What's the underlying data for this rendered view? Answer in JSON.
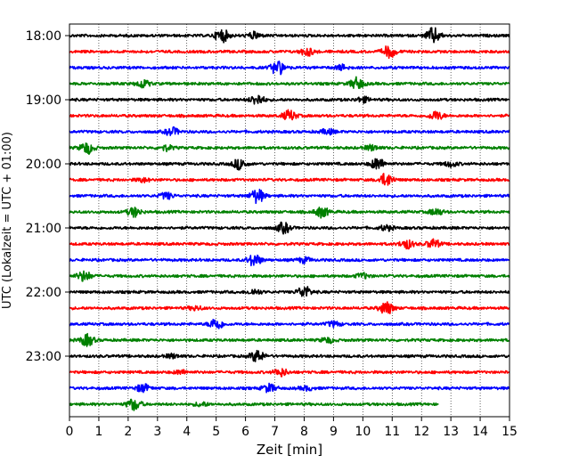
{
  "chart_data": {
    "type": "line",
    "description": "Helicorder seismogram: one trace per 15-minute interval, 18:00 to 23:45 UTC",
    "xlabel": "Zeit  [min]",
    "ylabel": "UTC (Lokalzeit = UTC + 01:00)",
    "xlim": [
      0,
      15
    ],
    "x_ticks": [
      "0",
      "1",
      "2",
      "3",
      "4",
      "5",
      "6",
      "7",
      "8",
      "9",
      "10",
      "11",
      "12",
      "13",
      "14",
      "15"
    ],
    "y_ticks": [
      "18:00",
      "19:00",
      "20:00",
      "21:00",
      "22:00",
      "23:00"
    ],
    "grid_x": true,
    "trace_colors": [
      "#000000",
      "#ff0000",
      "#0000ff",
      "#008000"
    ],
    "traces": [
      {
        "start": "18:00",
        "color": "#000000",
        "end_min": 15,
        "bursts": [
          [
            5.2,
            1.0
          ],
          [
            12.4,
            1.2
          ],
          [
            6.3,
            0.5
          ]
        ]
      },
      {
        "start": "18:15",
        "color": "#ff0000",
        "end_min": 15,
        "bursts": [
          [
            8.1,
            0.6
          ],
          [
            10.9,
            0.9
          ]
        ]
      },
      {
        "start": "18:30",
        "color": "#0000ff",
        "end_min": 15,
        "bursts": [
          [
            7.1,
            1.1
          ],
          [
            9.3,
            0.4
          ]
        ]
      },
      {
        "start": "18:45",
        "color": "#008000",
        "end_min": 15,
        "bursts": [
          [
            2.5,
            0.6
          ],
          [
            9.8,
            0.9
          ]
        ]
      },
      {
        "start": "19:00",
        "color": "#000000",
        "end_min": 15,
        "bursts": [
          [
            6.4,
            0.8
          ],
          [
            10.0,
            0.4
          ]
        ]
      },
      {
        "start": "19:15",
        "color": "#ff0000",
        "end_min": 15,
        "bursts": [
          [
            7.5,
            0.8
          ],
          [
            12.5,
            0.7
          ]
        ]
      },
      {
        "start": "19:30",
        "color": "#0000ff",
        "end_min": 15,
        "bursts": [
          [
            3.5,
            0.6
          ],
          [
            8.8,
            0.4
          ]
        ]
      },
      {
        "start": "19:45",
        "color": "#008000",
        "end_min": 15,
        "bursts": [
          [
            0.6,
            0.9
          ],
          [
            3.3,
            0.4
          ],
          [
            10.3,
            0.4
          ]
        ]
      },
      {
        "start": "20:00",
        "color": "#000000",
        "end_min": 15,
        "bursts": [
          [
            5.8,
            0.8
          ],
          [
            10.5,
            0.9
          ],
          [
            13.0,
            0.4
          ]
        ]
      },
      {
        "start": "20:15",
        "color": "#ff0000",
        "end_min": 15,
        "bursts": [
          [
            10.8,
            1.0
          ],
          [
            2.5,
            0.3
          ]
        ]
      },
      {
        "start": "20:30",
        "color": "#0000ff",
        "end_min": 15,
        "bursts": [
          [
            6.4,
            1.1
          ],
          [
            3.3,
            0.5
          ]
        ]
      },
      {
        "start": "20:45",
        "color": "#008000",
        "end_min": 15,
        "bursts": [
          [
            2.2,
            0.7
          ],
          [
            8.6,
            0.8
          ],
          [
            12.5,
            0.5
          ]
        ]
      },
      {
        "start": "21:00",
        "color": "#000000",
        "end_min": 15,
        "bursts": [
          [
            7.3,
            0.8
          ],
          [
            10.8,
            0.4
          ]
        ]
      },
      {
        "start": "21:15",
        "color": "#ff0000",
        "end_min": 15,
        "bursts": [
          [
            11.5,
            0.7
          ],
          [
            12.4,
            0.7
          ]
        ]
      },
      {
        "start": "21:30",
        "color": "#0000ff",
        "end_min": 15,
        "bursts": [
          [
            6.3,
            0.9
          ],
          [
            8.0,
            0.4
          ]
        ]
      },
      {
        "start": "21:45",
        "color": "#008000",
        "end_min": 15,
        "bursts": [
          [
            0.5,
            0.8
          ],
          [
            10.0,
            0.4
          ]
        ]
      },
      {
        "start": "22:00",
        "color": "#000000",
        "end_min": 15,
        "bursts": [
          [
            8.0,
            0.9
          ],
          [
            6.3,
            0.4
          ]
        ]
      },
      {
        "start": "22:15",
        "color": "#ff0000",
        "end_min": 15,
        "bursts": [
          [
            10.8,
            1.0
          ],
          [
            4.3,
            0.3
          ]
        ]
      },
      {
        "start": "22:30",
        "color": "#0000ff",
        "end_min": 15,
        "bursts": [
          [
            5.0,
            0.9
          ],
          [
            9.0,
            0.4
          ]
        ]
      },
      {
        "start": "22:45",
        "color": "#008000",
        "end_min": 15,
        "bursts": [
          [
            0.6,
            0.9
          ],
          [
            8.8,
            0.4
          ]
        ]
      },
      {
        "start": "23:00",
        "color": "#000000",
        "end_min": 15,
        "bursts": [
          [
            6.4,
            0.9
          ],
          [
            3.5,
            0.3
          ]
        ]
      },
      {
        "start": "23:15",
        "color": "#ff0000",
        "end_min": 15,
        "bursts": [
          [
            7.2,
            0.6
          ],
          [
            3.8,
            0.3
          ]
        ]
      },
      {
        "start": "23:30",
        "color": "#0000ff",
        "end_min": 15,
        "bursts": [
          [
            2.5,
            0.6
          ],
          [
            6.8,
            0.6
          ],
          [
            8.1,
            0.3
          ]
        ]
      },
      {
        "start": "23:45",
        "color": "#008000",
        "end_min": 12.6,
        "bursts": [
          [
            2.2,
            0.9
          ],
          [
            4.5,
            0.3
          ]
        ]
      }
    ]
  }
}
